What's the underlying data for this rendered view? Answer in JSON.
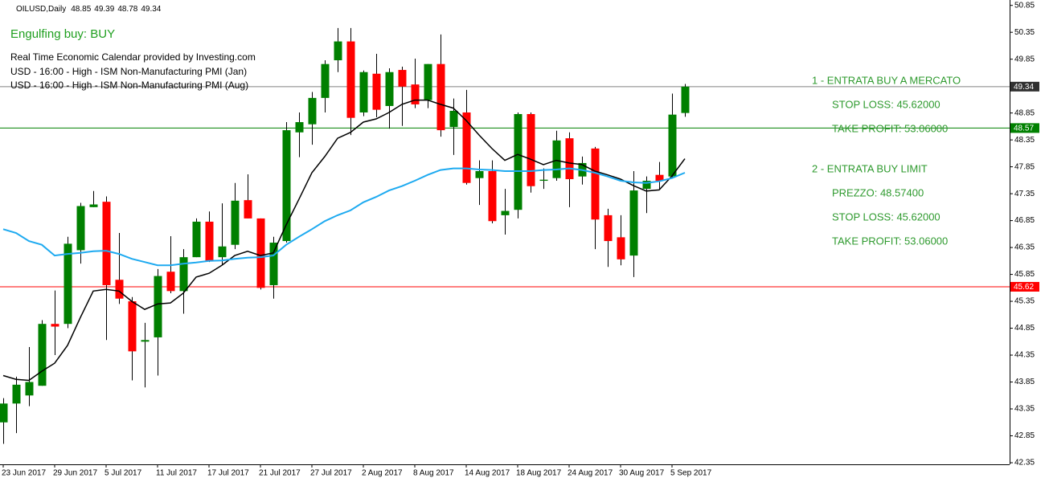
{
  "chart_data": {
    "type": "candlestick",
    "symbol": "OILUSD,Daily",
    "signal": "Engulfing buy: BUY",
    "calendar": [
      "Real Time Economic Calendar provided by Investing.com",
      "USD - 16:00 - High - ISM Non-Manufacturing PMI (Jan)",
      "USD - 16:00 - High - ISM Non-Manufacturing PMI (Aug)"
    ],
    "annotations": [
      "1 - ENTRATA BUY A MERCATO",
      "STOP LOSS: 45.62000",
      "TAKE PROFIT: 53.06000",
      "2 - ENTRATA BUY LIMIT",
      "PREZZO: 48.57400",
      "STOP LOSS: 45.62000",
      "TAKE PROFIT: 53.06000"
    ],
    "categories": [
      "23 Jun 2017",
      null,
      null,
      null,
      "29 Jun 2017",
      null,
      null,
      null,
      "5 Jul 2017",
      null,
      null,
      null,
      "11 Jul 2017",
      null,
      null,
      null,
      "17 Jul 2017",
      null,
      null,
      null,
      "21 Jul 2017",
      null,
      null,
      null,
      "27 Jul 2017",
      null,
      null,
      null,
      "2 Aug 2017",
      null,
      null,
      null,
      "8 Aug 2017",
      null,
      null,
      null,
      "14 Aug 2017",
      null,
      null,
      null,
      "18 Aug 2017",
      null,
      null,
      null,
      "24 Aug 2017",
      null,
      null,
      null,
      "30 Aug 2017",
      null,
      null,
      null,
      "5 Sep 2017",
      null
    ],
    "open": [
      43.1,
      43.45,
      43.6,
      43.78,
      44.93,
      44.93,
      46.3,
      47.1,
      47.2,
      45.75,
      45.35,
      44.6,
      44.68,
      45.9,
      45.54,
      46.17,
      46.83,
      46.17,
      46.4,
      47.23,
      46.89,
      45.65,
      46.47,
      48.49,
      48.64,
      49.13,
      49.83,
      50.18,
      48.86,
      49.58,
      48.98,
      49.65,
      49.38,
      49.09,
      49.76,
      48.59,
      48.86,
      47.64,
      47.77,
      46.95,
      47.05,
      48.83,
      47.59,
      47.64,
      48.38,
      47.67,
      48.19,
      46.95,
      46.54,
      46.2,
      47.44,
      47.7,
      47.67,
      48.85
    ],
    "high": [
      43.55,
      43.95,
      44.5,
      45.0,
      45.55,
      46.55,
      47.18,
      47.4,
      47.3,
      46.62,
      45.43,
      44.95,
      45.95,
      46.56,
      46.32,
      46.89,
      47.02,
      47.17,
      47.55,
      47.71,
      46.89,
      46.55,
      48.68,
      48.86,
      49.24,
      49.83,
      50.43,
      50.43,
      49.64,
      49.95,
      49.68,
      49.71,
      49.86,
      49.76,
      50.31,
      49.12,
      49.28,
      47.97,
      47.97,
      47.44,
      48.86,
      48.86,
      47.82,
      48.52,
      48.49,
      48.04,
      48.22,
      47.07,
      46.95,
      47.77,
      47.67,
      47.94,
      49.21,
      49.39
    ],
    "low": [
      42.7,
      42.9,
      43.4,
      43.78,
      44.35,
      44.85,
      46.05,
      47.1,
      44.63,
      45.3,
      43.88,
      43.75,
      43.97,
      45.5,
      45.12,
      46.17,
      46.08,
      46.02,
      46.32,
      46.89,
      45.57,
      45.4,
      46.44,
      48.03,
      48.26,
      48.86,
      49.61,
      48.44,
      48.79,
      48.77,
      48.56,
      48.61,
      48.94,
      48.94,
      48.41,
      48.07,
      47.52,
      47.14,
      46.8,
      46.59,
      46.89,
      47.37,
      47.44,
      47.59,
      47.1,
      47.52,
      46.32,
      45.99,
      46.02,
      45.8,
      46.99,
      47.44,
      47.64,
      48.78
    ],
    "close": [
      43.45,
      43.8,
      43.85,
      44.93,
      44.88,
      46.42,
      47.12,
      47.15,
      45.65,
      45.4,
      44.42,
      44.63,
      45.82,
      45.54,
      46.17,
      46.83,
      46.1,
      46.37,
      47.22,
      46.89,
      45.6,
      46.44,
      48.53,
      48.68,
      49.13,
      49.76,
      50.18,
      48.76,
      49.61,
      48.91,
      49.61,
      49.34,
      49.01,
      49.76,
      48.53,
      48.89,
      47.55,
      47.77,
      46.84,
      47.03,
      48.83,
      47.49,
      47.61,
      48.34,
      47.62,
      47.92,
      46.87,
      46.47,
      46.13,
      47.41,
      47.59,
      47.59,
      48.82,
      49.34
    ],
    "up_color": "#008000",
    "down_color": "#ff0000",
    "wick_color": "#000000",
    "lines": [
      {
        "color": "#000000",
        "values": [
          43.97,
          43.9,
          43.88,
          44.05,
          44.2,
          44.53,
          45.05,
          45.54,
          45.57,
          45.54,
          45.35,
          45.2,
          45.3,
          45.32,
          45.5,
          45.8,
          45.87,
          46.02,
          46.2,
          46.28,
          46.2,
          46.25,
          46.77,
          47.25,
          47.74,
          48.04,
          48.38,
          48.49,
          48.68,
          48.74,
          48.86,
          49.01,
          49.09,
          49.09,
          49.01,
          48.94,
          48.71,
          48.44,
          48.19,
          47.97,
          48.08,
          47.99,
          47.89,
          47.97,
          47.92,
          47.89,
          47.77,
          47.7,
          47.62,
          47.5,
          47.4,
          47.42,
          47.68,
          48.0
        ]
      },
      {
        "color": "#1eaaf0",
        "values": [
          46.69,
          46.62,
          46.47,
          46.4,
          46.2,
          46.23,
          46.25,
          46.28,
          46.29,
          46.23,
          46.14,
          46.08,
          46.02,
          46.02,
          46.05,
          46.07,
          46.1,
          46.11,
          46.14,
          46.16,
          46.17,
          46.2,
          46.4,
          46.55,
          46.69,
          46.84,
          46.95,
          47.04,
          47.19,
          47.29,
          47.41,
          47.49,
          47.59,
          47.7,
          47.79,
          47.82,
          47.82,
          47.8,
          47.79,
          47.77,
          47.77,
          47.77,
          47.79,
          47.8,
          47.82,
          47.79,
          47.74,
          47.67,
          47.59,
          47.56,
          47.55,
          47.58,
          47.64,
          47.74
        ]
      }
    ],
    "hlines": [
      {
        "value": 49.34,
        "color": "#808080",
        "box_color": "#303030"
      },
      {
        "value": 48.57,
        "color": "#008000",
        "box_color": "#008000"
      },
      {
        "value": 45.62,
        "color": "#ff0000",
        "box_color": "#ff0000"
      }
    ],
    "ylim": [
      42.32,
      50.95
    ],
    "yticks": [
      42.35,
      42.85,
      43.35,
      43.85,
      44.35,
      44.85,
      45.35,
      45.85,
      46.35,
      46.85,
      47.35,
      47.85,
      48.35,
      48.85,
      49.35,
      49.85,
      50.35,
      50.85
    ]
  }
}
